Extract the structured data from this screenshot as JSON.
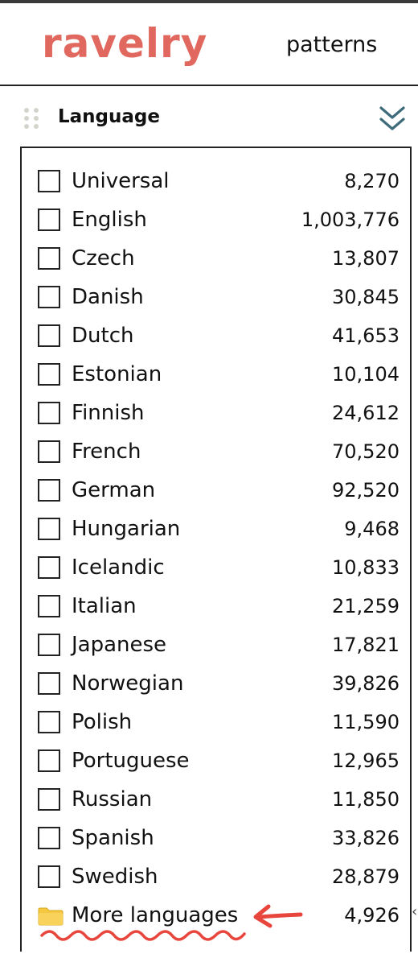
{
  "header": {
    "logo_text": "ravelry",
    "nav_patterns": "patterns"
  },
  "section": {
    "title": "Language",
    "collapse_icon": "double-chevron-down-icon"
  },
  "languages": [
    {
      "label": "Universal",
      "count": "8,270",
      "checked": false
    },
    {
      "label": "English",
      "count": "1,003,776",
      "checked": false
    },
    {
      "label": "Czech",
      "count": "13,807",
      "checked": false
    },
    {
      "label": "Danish",
      "count": "30,845",
      "checked": false
    },
    {
      "label": "Dutch",
      "count": "41,653",
      "checked": false
    },
    {
      "label": "Estonian",
      "count": "10,104",
      "checked": false
    },
    {
      "label": "Finnish",
      "count": "24,612",
      "checked": false
    },
    {
      "label": "French",
      "count": "70,520",
      "checked": false
    },
    {
      "label": "German",
      "count": "92,520",
      "checked": false
    },
    {
      "label": "Hungarian",
      "count": "9,468",
      "checked": false
    },
    {
      "label": "Icelandic",
      "count": "10,833",
      "checked": false
    },
    {
      "label": "Italian",
      "count": "21,259",
      "checked": false
    },
    {
      "label": "Japanese",
      "count": "17,821",
      "checked": false
    },
    {
      "label": "Norwegian",
      "count": "39,826",
      "checked": false
    },
    {
      "label": "Polish",
      "count": "11,590",
      "checked": false
    },
    {
      "label": "Portuguese",
      "count": "12,965",
      "checked": false
    },
    {
      "label": "Russian",
      "count": "11,850",
      "checked": false
    },
    {
      "label": "Spanish",
      "count": "33,826",
      "checked": false
    },
    {
      "label": "Swedish",
      "count": "28,879",
      "checked": false
    }
  ],
  "more": {
    "label": "More languages",
    "count": "4,926",
    "icon": "folder-icon"
  },
  "colors": {
    "brand": "#e0685e",
    "collapse_icon": "#3d6b7a",
    "annotation": "#e8453c",
    "folder": "#f5c842"
  }
}
